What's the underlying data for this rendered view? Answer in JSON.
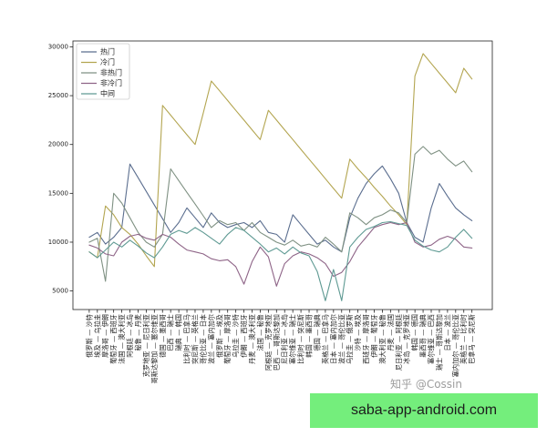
{
  "chart_data": {
    "type": "line",
    "title": "",
    "xlabel": "",
    "ylabel": "",
    "ylim": [
      3100,
      30600
    ],
    "yticks": [
      5000,
      10000,
      15000,
      20000,
      25000,
      30000
    ],
    "grid": false,
    "legend": "top-left",
    "categories": [
      "俄罗斯 — 沙特",
      "埃及 — 乌拉圭",
      "摩洛哥 — 伊朗",
      "葡萄牙 — 西班牙",
      "法国 — 澳大利亚",
      "阿根廷 — 冰岛",
      "秘鲁 — 丹麦",
      "克罗地亚 — 尼日利亚",
      "哥斯达黎加 — 塞尔维亚",
      "德国 — 墨西哥",
      "巴西 — 瑞士",
      "瑞典 — 韩国",
      "比利时 — 巴拿马",
      "突尼斯 — 英格兰",
      "哥伦比亚 — 日本",
      "波兰 — 塞内加尔",
      "俄罗斯 — 埃及",
      "葡萄牙 — 摩洛哥",
      "乌拉圭 — 沙特",
      "伊朗 — 西班牙",
      "丹麦 — 澳大利亚",
      "法国 — 秘鲁",
      "阿根廷 — 克罗地亚",
      "巴西 — 哥斯达黎加",
      "尼日利亚 — 冰岛",
      "塞尔维亚 — 瑞士",
      "比利时 — 突尼斯",
      "韩国 — 墨西哥",
      "德国 — 瑞典",
      "英格兰 — 巴拿马",
      "日本 — 塞内加尔",
      "波兰 — 哥伦比亚",
      "乌拉圭 — 俄罗斯",
      "沙特 — 埃及",
      "西班牙 — 摩洛哥",
      "伊朗 — 葡萄牙",
      "澳大利亚 — 秘鲁",
      "丹麦 — 法国",
      "尼日利亚 — 阿根廷",
      "冰岛 — 克罗地亚",
      "韩国 — 德国",
      "墨西哥 — 瑞典",
      "塞尔维亚 — 巴西",
      "瑞士 — 哥斯达黎加",
      "日本 — 波兰",
      "塞内加尔 — 哥伦比亚",
      "英格兰 — 比利时",
      "巴拿马 — 突尼斯"
    ],
    "series": [
      {
        "name": "热门",
        "color": "#5b6e8f",
        "values": [
          10500,
          11000,
          9800,
          10500,
          11500,
          18000,
          16600,
          15200,
          13800,
          12400,
          11000,
          12000,
          13500,
          12500,
          11500,
          13000,
          12000,
          11500,
          11800,
          12000,
          11500,
          12200,
          11000,
          10800,
          10000,
          12800,
          11800,
          10800,
          9800,
          10200,
          9500,
          9000,
          12500,
          14500,
          16000,
          17000,
          17800,
          16500,
          15000,
          12000,
          10500,
          10000,
          13500,
          16000,
          14700,
          13500,
          12800,
          12200
        ]
      },
      {
        "name": "冷门",
        "color": "#b3a550",
        "values": [
          9000,
          8400,
          13700,
          12800,
          11500,
          10800,
          9800,
          8600,
          7500,
          24000,
          23000,
          22000,
          21000,
          20000,
          23200,
          26500,
          25500,
          24500,
          23500,
          22500,
          21500,
          20500,
          23500,
          22500,
          21500,
          20500,
          19500,
          18500,
          17500,
          16500,
          15500,
          14500,
          18500,
          17500,
          16600,
          15600,
          14700,
          13700,
          12800,
          11800,
          27000,
          29300,
          28300,
          27300,
          26300,
          25300,
          27800,
          26700
        ]
      },
      {
        "name": "非热门",
        "color": "#7f9183",
        "values": [
          10000,
          10400,
          6000,
          15000,
          14000,
          12500,
          11000,
          10000,
          9500,
          10800,
          17500,
          16300,
          15100,
          13900,
          12700,
          11500,
          12200,
          11800,
          12000,
          11200,
          12000,
          11000,
          10500,
          10000,
          9700,
          10200,
          9600,
          9800,
          9500,
          10500,
          9800,
          9000,
          13000,
          12500,
          11800,
          12500,
          12800,
          13300,
          13000,
          12000,
          19000,
          19800,
          19000,
          19400,
          18500,
          17800,
          18300,
          17200
        ]
      },
      {
        "name": "非冷门",
        "color": "#8e6487",
        "values": [
          9700,
          9400,
          8800,
          8600,
          10000,
          10600,
          10800,
          10400,
          10200,
          10800,
          10500,
          9800,
          9200,
          9000,
          8800,
          8300,
          8100,
          8200,
          7500,
          5700,
          8000,
          9500,
          8500,
          5500,
          7800,
          8600,
          9000,
          8800,
          8400,
          7800,
          6500,
          6900,
          8000,
          9500,
          10500,
          11500,
          11800,
          12000,
          11800,
          12000,
          10000,
          9500,
          9700,
          10300,
          10600,
          10300,
          9500,
          9400
        ]
      },
      {
        "name": "中间",
        "color": "#5f9a93",
        "values": [
          9000,
          8400,
          9200,
          10000,
          9500,
          10200,
          9600,
          8900,
          8400,
          9500,
          10800,
          11200,
          10900,
          11500,
          11000,
          10400,
          9800,
          10800,
          11500,
          11200,
          10500,
          9800,
          9000,
          9400,
          8800,
          9500,
          8900,
          8600,
          7000,
          4000,
          7200,
          4000,
          9500,
          10500,
          11300,
          11600,
          12000,
          12100,
          11900,
          11700,
          10200,
          9600,
          9200,
          9000,
          9500,
          10500,
          11300,
          10400
        ]
      }
    ]
  },
  "watermark": {
    "text": "知乎 @Cossin"
  },
  "banner": {
    "text": "saba-app-android.com",
    "color": "#74ee7c"
  }
}
